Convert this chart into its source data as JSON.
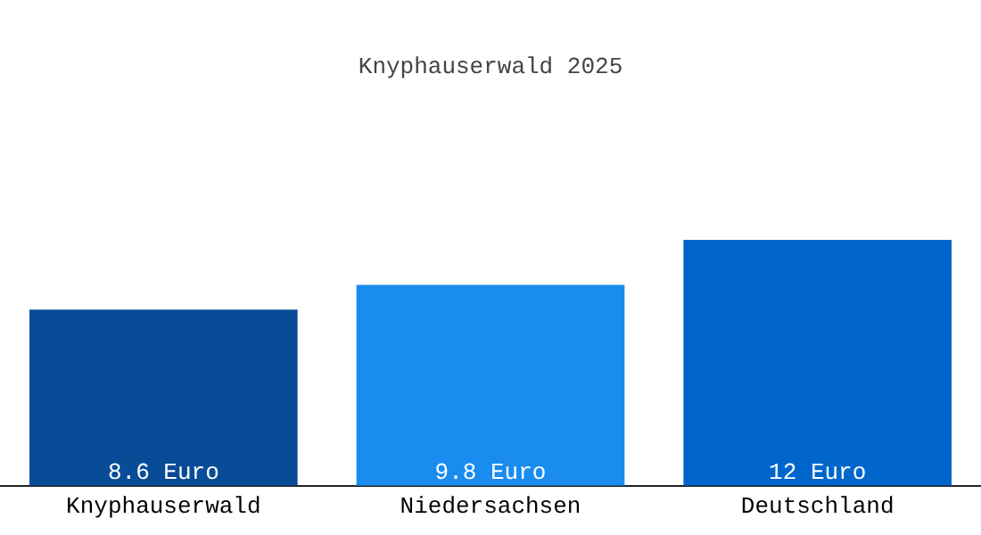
{
  "chart_data": {
    "type": "bar",
    "title": "Knyphauserwald 2025",
    "categories": [
      "Knyphauserwald",
      "Niedersachsen",
      "Deutschland"
    ],
    "values": [
      8.6,
      9.8,
      12
    ],
    "colors": [
      "#084c97",
      "#1a8cf0",
      "#0066cc"
    ],
    "value_labels": [
      "8.6 Euro",
      "9.8 Euro",
      "12 Euro"
    ],
    "legend": false,
    "grid": false
  }
}
